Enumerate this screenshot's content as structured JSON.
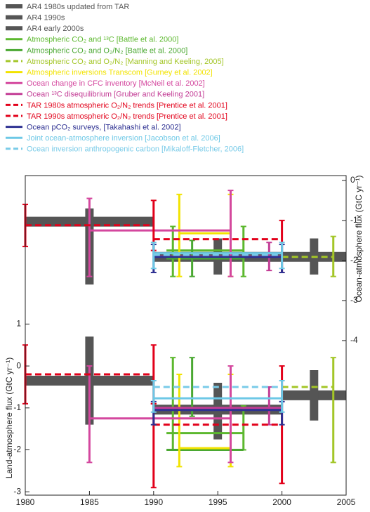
{
  "chart_data": {
    "type": "errorbar",
    "xlabel": null,
    "ylabel": "Land-atmosphere flux (GtC yr⁻¹)",
    "y2label": "Ocean-atmosphere flux (GtC yr⁻¹)",
    "xlim": [
      1980,
      2005
    ],
    "xticks": [
      1980,
      1985,
      1990,
      1995,
      2000,
      2005
    ],
    "ylim": [
      -3.08,
      4.54
    ],
    "yticks": [
      1,
      0,
      -1,
      -2,
      -3
    ],
    "y2lim": [
      -7.86,
      0.12
    ],
    "y2ticks": [
      0,
      -1,
      -2,
      -3,
      -4
    ],
    "series": [
      {
        "name": "AR4 1980s updated from TAR",
        "color": "#555555",
        "style": "band",
        "ocean": [
          {
            "period": [
              1980,
              1990
            ],
            "value": -1.03,
            "errors": [
              {
                "at": 1985,
                "range": [
                  -0.7,
                  -2.6
                ]
              }
            ]
          }
        ],
        "land": [
          {
            "period": [
              1980,
              1990
            ],
            "value": -0.35,
            "errors": [
              {
                "at": 1985,
                "range": [
                  0.7,
                  -1.4
                ]
              }
            ]
          }
        ]
      },
      {
        "name": "AR4 1990s",
        "color": "#555555",
        "style": "band",
        "ocean": [
          {
            "period": [
              1990,
              2000
            ],
            "value": -1.91,
            "errors": [
              {
                "at": 1995,
                "range": [
                  -1.45,
                  -2.35
                ]
              }
            ]
          }
        ],
        "land": [
          {
            "period": [
              1990,
              2000
            ],
            "value": -1.04,
            "errors": [
              {
                "at": 1995,
                "range": [
                  -0.4,
                  -1.75
                ]
              }
            ]
          }
        ]
      },
      {
        "name": "AR4 early 2000s",
        "color": "#555555",
        "style": "band",
        "ocean": [
          {
            "period": [
              2000,
              2005
            ],
            "value": -1.91,
            "errors": [
              {
                "at": 2002.5,
                "range": [
                  -1.45,
                  -2.35
                ]
              }
            ]
          }
        ],
        "land": [
          {
            "period": [
              2000,
              2005
            ],
            "value": -0.7,
            "errors": [
              {
                "at": 2002.5,
                "range": [
                  -0.1,
                  -1.3
                ]
              }
            ]
          }
        ]
      },
      {
        "name": "Atmospheric CO₂ and ¹³C [Battle et al. 2000]",
        "color": "#5cb82e",
        "style": "solid",
        "ocean": [
          {
            "period": [
              1991,
              1997
            ],
            "value": -1.75,
            "errors": [
              {
                "at": 1991.5,
                "range": [
                  -1.15,
                  -2.4
                ]
              },
              {
                "at": 1997,
                "range": [
                  -1.15,
                  -2.4
                ]
              }
            ]
          }
        ],
        "land": [
          {
            "period": [
              1991,
              1997
            ],
            "value": -1.6,
            "errors": [
              {
                "at": 1991.5,
                "range": [
                  0.2,
                  -2.0
                ]
              },
              {
                "at": 1997,
                "range": [
                  -0.95,
                  -2.0
                ]
              }
            ]
          }
        ]
      },
      {
        "name": "Atmospheric CO₂ and O₂/N₂ [Battle et al. 2000]",
        "color": "#4aa832",
        "style": "solid",
        "ocean": [
          {
            "period": [
              1991,
              1997
            ],
            "value": -1.95,
            "errors": [
              {
                "at": 1993,
                "range": [
                  -1.5,
                  -2.4
                ]
              }
            ]
          }
        ],
        "land": [
          {
            "period": [
              1991,
              1997
            ],
            "value": -2.0,
            "errors": [
              {
                "at": 1993,
                "range": [
                  0.2,
                  -1.2
                ]
              }
            ]
          }
        ]
      },
      {
        "name": "Atmospheric CO₂ and O₂/N₂ [Manning and Keeling, 2005]",
        "color": "#a3c627",
        "style": "dashed",
        "ocean": [
          {
            "period": [
              2000,
              2004
            ],
            "value": -1.91,
            "errors": [
              {
                "at": 2004,
                "range": [
                  -1.4,
                  -2.4
                ]
              }
            ]
          }
        ],
        "land": [
          {
            "period": [
              2000,
              2004
            ],
            "value": -0.5,
            "errors": [
              {
                "at": 2004,
                "range": [
                  0.2,
                  -2.3
                ]
              }
            ]
          }
        ]
      },
      {
        "name": "Atmospheric inversions Transcom [Gurney et al. 2002]",
        "color": "#f2e300",
        "style": "solid",
        "ocean": [
          {
            "period": [
              1992,
              1996
            ],
            "value": -1.32,
            "errors": [
              {
                "at": 1992,
                "range": [
                  -0.35,
                  -2.4
                ]
              },
              {
                "at": 1996,
                "range": [
                  -0.35,
                  -2.4
                ]
              }
            ]
          }
        ],
        "land": [
          {
            "period": [
              1992,
              1996
            ],
            "value": -1.96,
            "errors": [
              {
                "at": 1992,
                "range": [
                  -0.2,
                  -2.4
                ]
              },
              {
                "at": 1996,
                "range": [
                  -0.2,
                  -2.4
                ]
              }
            ]
          }
        ]
      },
      {
        "name": "Ocean change in CFC inventory [McNeil et al. 2002]",
        "color": "#d4479e",
        "style": "solid",
        "ocean": [
          {
            "period": [
              1985,
              1996
            ],
            "value": -1.25,
            "errors": [
              {
                "at": 1985,
                "range": [
                  -0.45,
                  -2.4
                ]
              },
              {
                "at": 1996,
                "range": [
                  -0.25,
                  -2.4
                ]
              }
            ]
          }
        ],
        "land": [
          {
            "period": [
              1985,
              1996
            ],
            "value": -1.25,
            "errors": [
              {
                "at": 1985,
                "range": [
                  0,
                  -2.3
                ]
              },
              {
                "at": 1996,
                "range": [
                  0,
                  -2.3
                ]
              }
            ]
          }
        ]
      },
      {
        "name": "Ocean ¹³C disequilibrium [Gruber and Keeling 2001]",
        "color": "#c33c95",
        "style": "solid",
        "ocean": [
          {
            "period": [
              1990,
              2000
            ],
            "value": -1.9,
            "errors": [
              {
                "at": 1999,
                "range": [
                  -1.55,
                  -2.25
                ]
              }
            ]
          }
        ],
        "land": [
          {
            "period": [
              1990,
              2000
            ],
            "value": -1.0,
            "errors": [
              {
                "at": 1999,
                "range": [
                  -0.5,
                  -1.4
                ]
              }
            ]
          }
        ]
      },
      {
        "name": "TAR 1980s atmospheric O₂/N₂ trends [Prentice et al. 2001]",
        "color": "#e2001a",
        "style": "dashed",
        "ocean": [
          {
            "period": [
              1980,
              1990
            ],
            "value": -1.12,
            "errors": [
              {
                "at": 1980,
                "range": [
                  -0.6,
                  -1.65
                ]
              },
              {
                "at": 1990,
                "range": [
                  -0.5,
                  -1.75
                ]
              }
            ]
          }
        ],
        "land": [
          {
            "period": [
              1980,
              1990
            ],
            "value": -0.2,
            "errors": [
              {
                "at": 1980,
                "range": [
                  0.5,
                  -0.9
                ]
              },
              {
                "at": 1990,
                "range": [
                  0.5,
                  -0.9
                ]
              }
            ]
          }
        ]
      },
      {
        "name": "TAR 1990s atmospheric O₂/N₂ trends [Prentice et al. 2001]",
        "color": "#e2001a",
        "style": "dashed",
        "ocean": [
          {
            "period": [
              1990,
              2000
            ],
            "value": -1.47,
            "errors": [
              {
                "at": 2000,
                "range": [
                  -1.0,
                  -2.3
                ]
              }
            ]
          }
        ],
        "land": [
          {
            "period": [
              1990,
              2000
            ],
            "value": -1.4,
            "errors": [
              {
                "at": 1990,
                "range": [
                  -0.9,
                  -2.9
                ]
              },
              {
                "at": 2000,
                "range": [
                  0,
                  -2.8
                ]
              }
            ]
          }
        ]
      },
      {
        "name": "Ocean pCO₂ surveys, [Takahashi et al. 2002]",
        "color": "#2e3192",
        "style": "solid",
        "ocean": [
          {
            "period": [
              1990,
              2000
            ],
            "value": -1.91,
            "errors": [
              {
                "at": 1990,
                "range": [
                  -1.6,
                  -2.3
                ]
              },
              {
                "at": 2000,
                "range": [
                  -1.6,
                  -2.3
                ]
              }
            ]
          }
        ],
        "land": [
          {
            "period": [
              1990,
              2000
            ],
            "value": -1.05,
            "errors": [
              {
                "at": 1990,
                "range": [
                  -0.85,
                  -1.4
                ]
              },
              {
                "at": 2000,
                "range": [
                  -0.85,
                  -1.4
                ]
              }
            ]
          }
        ]
      },
      {
        "name": "Joint ocean-atmosphere inversion [Jacobson et al. 2006]",
        "color": "#6dc8e6",
        "style": "solid",
        "ocean": [
          {
            "period": [
              1990,
              2000
            ],
            "value": -1.82,
            "errors": [
              {
                "at": 1990,
                "range": [
                  -1.55,
                  -2.2
                ]
              },
              {
                "at": 2000,
                "range": [
                  -1.55,
                  -2.2
                ]
              }
            ]
          }
        ],
        "land": [
          {
            "period": [
              1990,
              2000
            ],
            "value": -0.77,
            "errors": [
              {
                "at": 1990,
                "range": [
                  -0.35,
                  -1.1
                ]
              },
              {
                "at": 2000,
                "range": [
                  -0.35,
                  -1.1
                ]
              }
            ]
          }
        ]
      },
      {
        "name": "Ocean inversion anthropogenic carbon [Mikaloff-Fletcher, 2006]",
        "color": "#79cbe8",
        "style": "dashed",
        "ocean": [
          {
            "period": [
              1990,
              2000
            ],
            "value": -1.86,
            "errors": []
          }
        ],
        "land": [
          {
            "period": [
              1990,
              2000
            ],
            "value": -0.5,
            "errors": []
          }
        ]
      }
    ]
  }
}
